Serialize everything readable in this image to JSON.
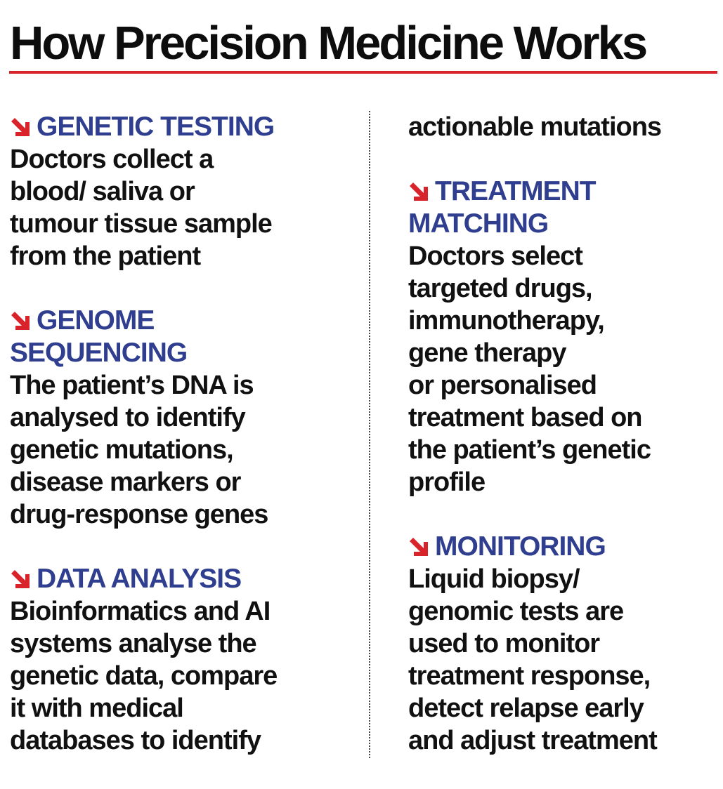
{
  "title": "How Precision Medicine Works",
  "colors": {
    "title_text": "#0d0d0d",
    "rule": "#d8232a",
    "heading": "#2f3e8f",
    "arrow": "#d8232a",
    "body_text": "#111111"
  },
  "arrow_icon": "red-down-right-arrow-icon",
  "sections": [
    {
      "heading": "GENETIC TESTING",
      "lines": [
        "Doctors collect a",
        "blood/ saliva or",
        "tumour tissue sample",
        "from the patient"
      ]
    },
    {
      "heading_lines": [
        "GENOME",
        "SEQUENCING"
      ],
      "lines": [
        "The patient’s DNA is",
        "analysed to identify",
        "genetic mutations,",
        "disease markers or",
        "drug-response genes"
      ]
    },
    {
      "heading": "DATA ANALYSIS",
      "lines": [
        "Bioinformatics and AI",
        "systems analyse the",
        "genetic data, compare",
        "it with medical",
        "databases to identify"
      ],
      "continued_line": "actionable mutations"
    },
    {
      "heading_lines": [
        "TREATMENT",
        "MATCHING"
      ],
      "lines": [
        "Doctors select",
        "targeted drugs,",
        "immunotherapy,",
        "gene therapy",
        "or personalised",
        "treatment based on",
        "the patient’s genetic",
        "profile"
      ]
    },
    {
      "heading": "MONITORING",
      "lines": [
        "Liquid biopsy/",
        "genomic tests are",
        "used to monitor",
        "treatment response,",
        "detect relapse early",
        "and adjust treatment"
      ]
    }
  ]
}
